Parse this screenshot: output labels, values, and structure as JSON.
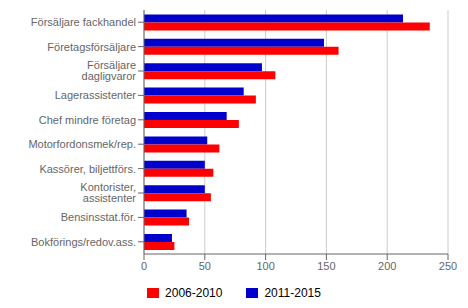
{
  "chart_data": {
    "type": "bar",
    "orientation": "horizontal",
    "categories": [
      "Försäljare fackhandel",
      "Företagsförsäljare",
      "Försäljare dagligvaror",
      "Lagerassistenter",
      "Chef mindre företag",
      "Motorfordonsmek/rep.",
      "Kassörer, biljettförs.",
      "Kontorister, assistenter",
      "Bensinsstat.för.",
      "Bokförings/redov.ass."
    ],
    "series": [
      {
        "name": "2006-2010",
        "color": "#ff0000",
        "values": [
          235,
          160,
          108,
          92,
          78,
          62,
          57,
          55,
          37,
          25
        ]
      },
      {
        "name": "2011-2015",
        "color": "#0000cc",
        "values": [
          213,
          148,
          97,
          82,
          68,
          52,
          50,
          50,
          35,
          23
        ]
      }
    ],
    "xlim": [
      0,
      250
    ],
    "xticks": [
      0,
      50,
      100,
      150,
      200,
      250
    ],
    "grid": true,
    "legend": "bottom"
  }
}
